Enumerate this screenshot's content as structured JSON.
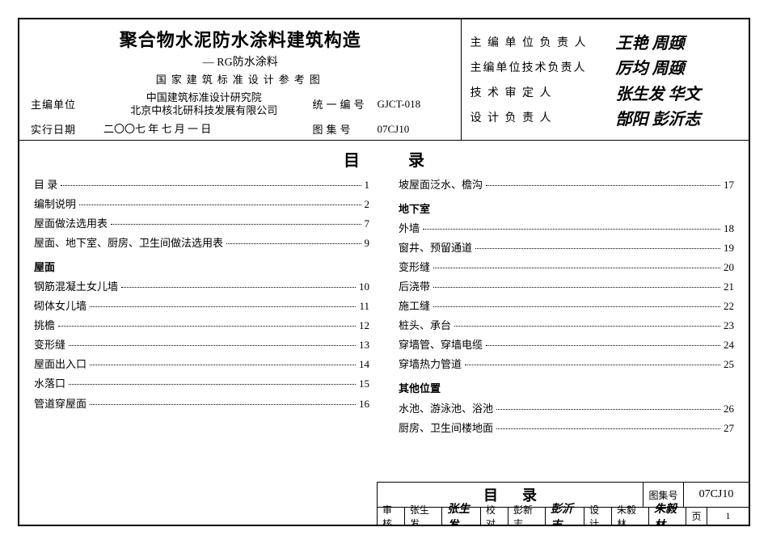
{
  "header": {
    "title": "聚合物水泥防水涂料建筑构造",
    "subtitle": "— RG防水涂料",
    "line3": "国家建筑标准设计参考图",
    "org_label": "主编单位",
    "org1": "中国建筑标准设计研究院",
    "org2": "北京中核北研科技发展有限公司",
    "code_label": "统一编号",
    "code_val": "GJCT-018",
    "date_label": "实行日期",
    "date_val": "二〇〇七 年 七 月 一 日",
    "atlas_label": "图集号",
    "atlas_val": "07CJ10"
  },
  "signatures": {
    "r1_label": "主 编 单 位 负 责 人",
    "r1_val": "王艳 周颋",
    "r2_label": "主编单位技术负责人",
    "r2_val": "厉均 周颋",
    "r3_label": "技 术 审 定 人",
    "r3_val": "张生发 华文",
    "r4_label": "设 计 负 责 人",
    "r4_val": "郜阳 彭沂志"
  },
  "toc_heading": "目录",
  "left_col": [
    {
      "t": "目 录",
      "p": "1"
    },
    {
      "t": "编制说明",
      "p": "2"
    },
    {
      "t": "屋面做法选用表",
      "p": "7"
    },
    {
      "t": "屋面、地下室、厨房、卫生间做法选用表",
      "p": "9"
    },
    {
      "section": "屋面"
    },
    {
      "t": "钢筋混凝土女儿墙",
      "p": "10"
    },
    {
      "t": "砌体女儿墙",
      "p": "11"
    },
    {
      "t": "挑檐",
      "p": "12"
    },
    {
      "t": "变形缝",
      "p": "13"
    },
    {
      "t": "屋面出入口",
      "p": "14"
    },
    {
      "t": "水落口",
      "p": "15"
    },
    {
      "t": "管道穿屋面",
      "p": "16"
    }
  ],
  "right_col": [
    {
      "t": "坡屋面泛水、檐沟",
      "p": "17"
    },
    {
      "section": "地下室"
    },
    {
      "t": "外墙",
      "p": "18"
    },
    {
      "t": "窗井、预留通道",
      "p": "19"
    },
    {
      "t": "变形缝",
      "p": "20"
    },
    {
      "t": "后浇带",
      "p": "21"
    },
    {
      "t": "施工缝",
      "p": "22"
    },
    {
      "t": "桩头、承台",
      "p": "23"
    },
    {
      "t": "穿墙管、穿墙电缆",
      "p": "24"
    },
    {
      "t": "穿墙热力管道",
      "p": "25"
    },
    {
      "section": "其他位置"
    },
    {
      "t": "水池、游泳池、浴池",
      "p": "26"
    },
    {
      "t": "厨房、卫生间楼地面",
      "p": "27"
    }
  ],
  "footer": {
    "title": "目录",
    "atlas_label": "图集号",
    "atlas_val": "07CJ10",
    "review_l": "审核",
    "review_n": "张生发",
    "review_s": "张生发",
    "proof_l": "校对",
    "proof_n": "彭新志",
    "proof_s": "彭沂志",
    "design_l": "设计",
    "design_n": "朱毅林",
    "design_s": "朱毅林",
    "page_l": "页",
    "page_v": "1"
  }
}
